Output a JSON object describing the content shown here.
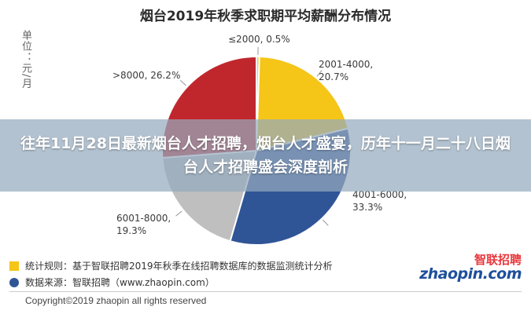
{
  "chart_data": {
    "type": "pie",
    "title": "烟台2019年秋季求职期平均薪酬分布情况",
    "unit_label": "单位：元/月",
    "slices": [
      {
        "label": "≤2000, 0.5%",
        "label_lines": [
          "≤2000, 0.5%"
        ],
        "value": 0.5,
        "color": "#f2c744"
      },
      {
        "label": "2001-4000, 20.7%",
        "label_lines": [
          "2001-4000,",
          "20.7%"
        ],
        "value": 20.7,
        "color": "#f5c518"
      },
      {
        "label": "4001-6000, 33.3%",
        "label_lines": [
          "4001-6000,",
          "33.3%"
        ],
        "value": 33.3,
        "color": "#2f5597"
      },
      {
        "label": "6001-8000, 19.3%",
        "label_lines": [
          "6001-8000,",
          "19.3%"
        ],
        "value": 19.3,
        "color": "#bfbfbf"
      },
      {
        "label": ">8000, 26.2%",
        "label_lines": [
          ">8000, 26.2%"
        ],
        "value": 26.2,
        "color": "#c0272d"
      }
    ]
  },
  "overlay": {
    "headline": "往年11月28日最新烟台人才招聘，烟台人才盛宴，历年十一月二十八日烟台人才招聘盛会深度剖析"
  },
  "notes": {
    "stats_rule": "统计规则：基于智联招聘2019年秋季在线招聘数据库的数据监测统计分析",
    "data_source": "数据来源：智联招聘（www.zhaopin.com）"
  },
  "brand": {
    "cn": "智联招聘",
    "en": "zhaopin.com"
  },
  "footer": {
    "copyright": "Copyright©2019 zhaopin all rights reserved"
  }
}
